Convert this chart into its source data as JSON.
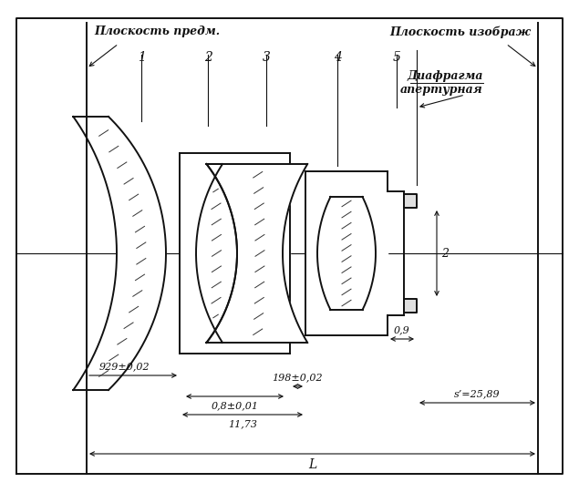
{
  "bg_color": "#ffffff",
  "line_color": "#111111",
  "figsize": [
    6.35,
    5.52
  ],
  "dpi": 100,
  "labels": {
    "object_plane": "Плоскость предм.",
    "image_plane": "Плоскость изображ",
    "diaphragm_line1": "Диафрагма",
    "diaphragm_line2": "апертурная",
    "dim1": "929±0,02",
    "dim2": "198±0,02",
    "dim3": "0,8±0,01",
    "dim4": "11,73",
    "dim5": "L",
    "dim6": "s’=25,89",
    "dim7": "0,9",
    "dim_vert": "2",
    "lens_nums": [
      "1",
      "2",
      "3",
      "4",
      "5"
    ]
  }
}
